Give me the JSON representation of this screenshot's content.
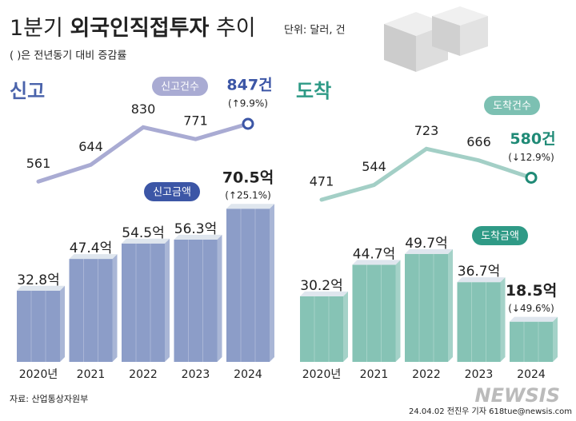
{
  "header": {
    "title": [
      "1분기",
      "외국인직접투자",
      "추이"
    ],
    "unit": "단위: 달러, 건",
    "note": "( )은 전년동기 대비 증감률"
  },
  "chart_data": [
    {
      "type": "bar",
      "title": "신고",
      "categories": [
        "2020년",
        "2021",
        "2022",
        "2023",
        "2024"
      ],
      "series": [
        {
          "name": "신고금액",
          "type": "bar",
          "color": "#8c9dc8",
          "values": [
            32.8,
            47.4,
            54.5,
            56.3,
            70.5
          ],
          "value_labels": [
            "32.8억",
            "47.4억",
            "54.5억",
            "56.3억",
            "70.5억"
          ]
        },
        {
          "name": "신고건수",
          "type": "line",
          "color": "#a9abd3",
          "values": [
            561,
            644,
            830,
            771,
            847
          ],
          "value_labels": [
            "561",
            "644",
            "830",
            "771",
            "847건"
          ]
        }
      ],
      "annotations": [
        "(↑25.1%)",
        "(↑9.9%)"
      ]
    },
    {
      "type": "bar",
      "title": "도착",
      "categories": [
        "2020년",
        "2021",
        "2022",
        "2023",
        "2024"
      ],
      "series": [
        {
          "name": "도착금액",
          "type": "bar",
          "color": "#86c3b5",
          "values": [
            30.2,
            44.7,
            49.7,
            36.7,
            18.5
          ],
          "value_labels": [
            "30.2억",
            "44.7억",
            "49.7억",
            "36.7억",
            "18.5억"
          ]
        },
        {
          "name": "도착건수",
          "type": "line",
          "color": "#a3cfc6",
          "values": [
            471,
            544,
            723,
            666,
            580
          ],
          "value_labels": [
            "471",
            "544",
            "723",
            "666",
            "580건"
          ]
        }
      ],
      "annotations": [
        "(↓49.6%)",
        "(↓12.9%)"
      ]
    }
  ],
  "footer": {
    "source": "자료: 산업통상자원부",
    "credit": "24.04.02 전진우 기자 618tue@newsis.com",
    "logo": "NEWSIS"
  }
}
